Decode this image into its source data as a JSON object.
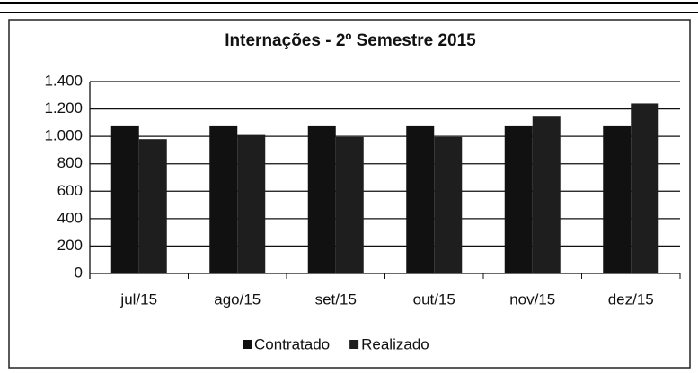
{
  "chart_data": {
    "type": "bar",
    "title": "Internações - 2º Semestre 2015",
    "categories": [
      "jul/15",
      "ago/15",
      "set/15",
      "out/15",
      "nov/15",
      "dez/15"
    ],
    "series": [
      {
        "name": "Contratado",
        "color": "#111111",
        "values": [
          1080,
          1080,
          1080,
          1080,
          1080,
          1080
        ]
      },
      {
        "name": "Realizado",
        "color": "#1e1e1e",
        "values": [
          980,
          1010,
          995,
          995,
          1150,
          1240
        ]
      }
    ],
    "ylim": [
      0,
      1400
    ],
    "yticks": [
      0,
      200,
      400,
      600,
      800,
      {
        "value": 1000,
        "label": "1.000"
      },
      {
        "value": 1200,
        "label": "1.200"
      },
      {
        "value": 1400,
        "label": "1.400"
      }
    ],
    "grid": true,
    "legend": "bottom"
  }
}
